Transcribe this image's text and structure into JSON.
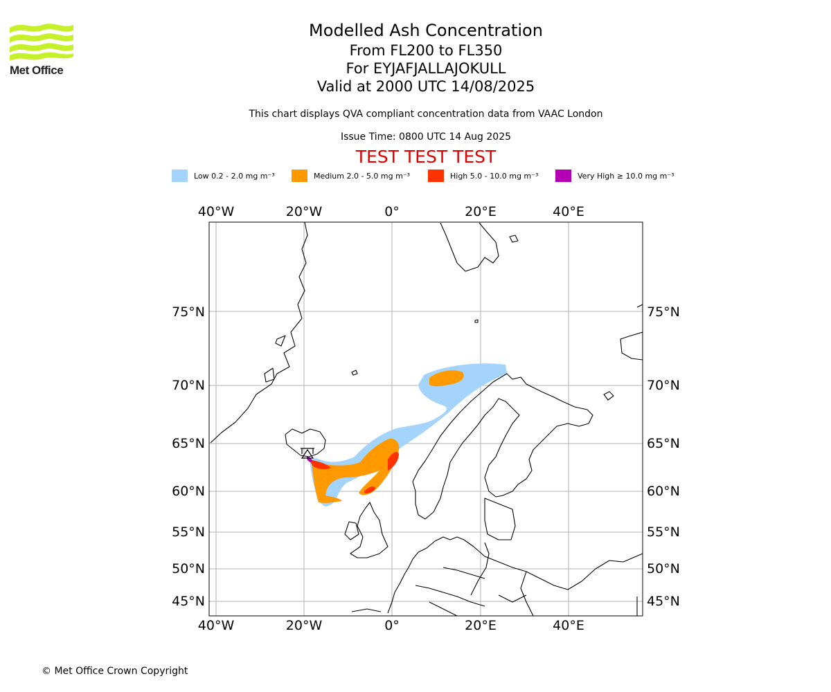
{
  "header": {
    "logo_name": "Met Office",
    "title": "Modelled Ash Concentration",
    "level_range": "From FL200 to FL350",
    "volcano": "For EYJAFJALLAJOKULL",
    "valid_time": "Valid at 2000 UTC 14/08/2025",
    "description": "This chart displays QVA compliant concentration data from VAAC London",
    "issue_time": "Issue Time: 0800 UTC 14 Aug 2025",
    "test_banner": "TEST TEST TEST"
  },
  "legend": [
    {
      "label": "Low 0.2 - 2.0 mg m⁻³",
      "color": "#a4d3fb"
    },
    {
      "label": "Medium 2.0 - 5.0 mg m⁻³",
      "color": "#ff9900"
    },
    {
      "label": "High 5.0 - 10.0 mg m⁻³",
      "color": "#ff3300"
    },
    {
      "label": "Very High ≥ 10.0 mg m⁻³",
      "color": "#b300b3"
    }
  ],
  "map": {
    "lon_labels": [
      "40°W",
      "20°W",
      "0°",
      "20°E",
      "40°E"
    ],
    "lat_labels": [
      "75°N",
      "70°N",
      "65°N",
      "60°N",
      "55°N",
      "50°N",
      "45°N"
    ],
    "gridlines": true,
    "coastline_color": "#000000",
    "source_marker": "volcano-triangle-icon"
  },
  "footer": {
    "copyright": "© Met Office Crown Copyright"
  }
}
